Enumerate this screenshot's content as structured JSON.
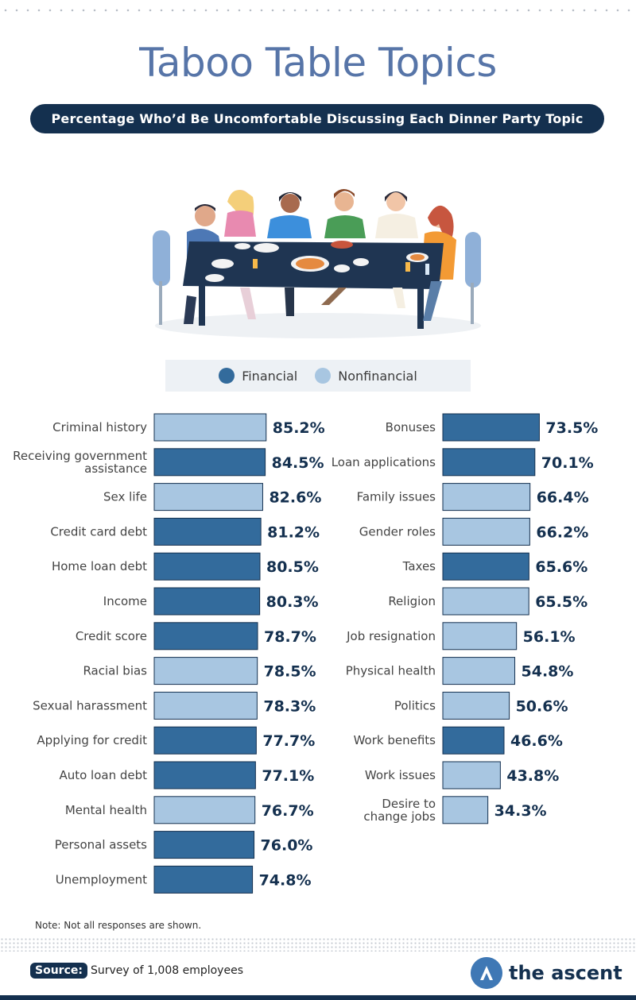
{
  "title": "Taboo Table Topics",
  "subtitle": "Percentage Who’d Be Uncomfortable Discussing Each Dinner Party Topic",
  "legend": {
    "financial": "Financial",
    "nonfinancial": "Nonfinancial"
  },
  "colors": {
    "financial": "#336b9c",
    "nonfinancial": "#a8c6e1",
    "dark": "#14304f",
    "title": "#5775a8"
  },
  "chart_data": {
    "type": "bar",
    "orientation": "horizontal",
    "legend": [
      "Financial",
      "Nonfinancial"
    ],
    "value_suffix": "%",
    "xlim": [
      0,
      100
    ],
    "grid": false,
    "columns": [
      {
        "items": [
          {
            "label": "Criminal history",
            "value": 85.2,
            "category": "Nonfinancial"
          },
          {
            "label": "Receiving government assistance",
            "value": 84.5,
            "category": "Financial"
          },
          {
            "label": "Sex life",
            "value": 82.6,
            "category": "Nonfinancial"
          },
          {
            "label": "Credit card debt",
            "value": 81.2,
            "category": "Financial"
          },
          {
            "label": "Home loan debt",
            "value": 80.5,
            "category": "Financial"
          },
          {
            "label": "Income",
            "value": 80.3,
            "category": "Financial"
          },
          {
            "label": "Credit score",
            "value": 78.7,
            "category": "Financial"
          },
          {
            "label": "Racial bias",
            "value": 78.5,
            "category": "Nonfinancial"
          },
          {
            "label": "Sexual harassment",
            "value": 78.3,
            "category": "Nonfinancial"
          },
          {
            "label": "Applying for credit",
            "value": 77.7,
            "category": "Financial"
          },
          {
            "label": "Auto loan debt",
            "value": 77.1,
            "category": "Financial"
          },
          {
            "label": "Mental health",
            "value": 76.7,
            "category": "Nonfinancial"
          },
          {
            "label": "Personal assets",
            "value": 76.0,
            "category": "Financial"
          },
          {
            "label": "Unemployment",
            "value": 74.8,
            "category": "Financial"
          }
        ]
      },
      {
        "items": [
          {
            "label": "Bonuses",
            "value": 73.5,
            "category": "Financial"
          },
          {
            "label": "Loan applications",
            "value": 70.1,
            "category": "Financial"
          },
          {
            "label": "Family issues",
            "value": 66.4,
            "category": "Nonfinancial"
          },
          {
            "label": "Gender roles",
            "value": 66.2,
            "category": "Nonfinancial"
          },
          {
            "label": "Taxes",
            "value": 65.6,
            "category": "Financial"
          },
          {
            "label": "Religion",
            "value": 65.5,
            "category": "Nonfinancial"
          },
          {
            "label": "Job resignation",
            "value": 56.1,
            "category": "Nonfinancial"
          },
          {
            "label": "Physical health",
            "value": 54.8,
            "category": "Nonfinancial"
          },
          {
            "label": "Politics",
            "value": 50.6,
            "category": "Nonfinancial"
          },
          {
            "label": "Work benefits",
            "value": 46.6,
            "category": "Financial"
          },
          {
            "label": "Work issues",
            "value": 43.8,
            "category": "Nonfinancial"
          },
          {
            "label": "Desire to change jobs",
            "value": 34.3,
            "category": "Nonfinancial"
          }
        ]
      }
    ]
  },
  "note": "Note: Not all responses are shown.",
  "source": {
    "label": "Source:",
    "text": "Survey of 1,008 employees"
  },
  "brand": {
    "name": "the ascent",
    "icon": "ascent-logo-icon"
  }
}
